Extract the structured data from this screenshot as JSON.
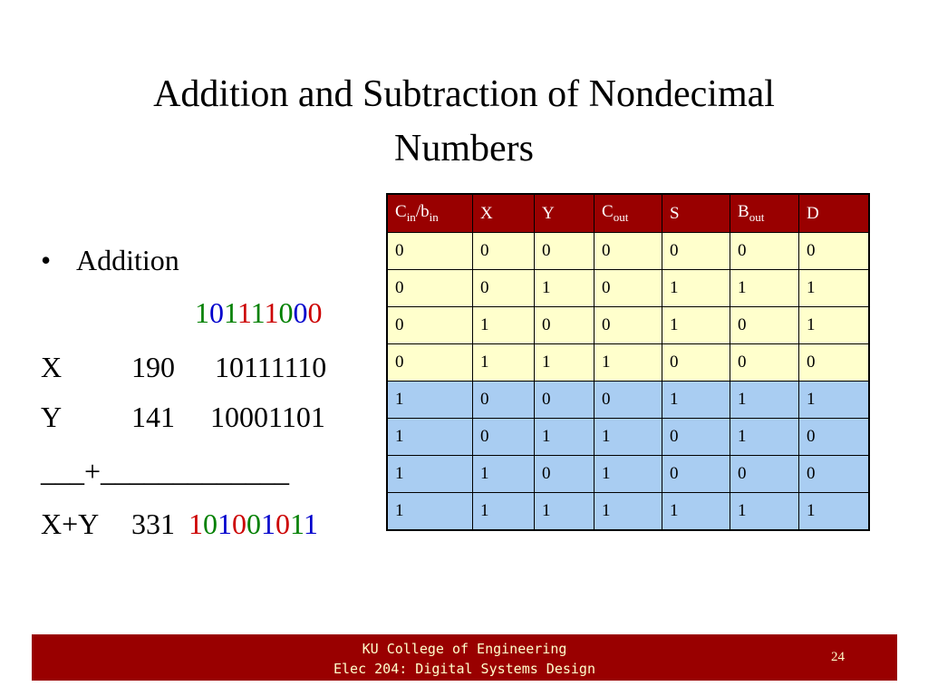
{
  "title": [
    "Addition and Subtraction of Nondecimal",
    "Numbers"
  ],
  "bullet": "Addition",
  "addition": {
    "carry": {
      "digits": [
        "1",
        "0",
        "1",
        "1",
        "1",
        "1",
        "0",
        "0",
        "0"
      ],
      "colors": [
        "#008000",
        "#0000cc",
        "#008000",
        "#cc0000",
        "#008000",
        "#cc0000",
        "#008000",
        "#0000cc",
        "#cc0000"
      ]
    },
    "x": {
      "label": "X",
      "decimal": "190",
      "binary": "10111110"
    },
    "y": {
      "label": "Y",
      "decimal": "141",
      "binary": "10001101"
    },
    "rule": "___+_____________",
    "sum": {
      "label": "X+Y",
      "decimal": "331",
      "digits": [
        "1",
        "0",
        "1",
        "0",
        "0",
        "1",
        "0",
        "1",
        "1"
      ],
      "colors": [
        "#cc0000",
        "#008000",
        "#0000cc",
        "#cc0000",
        "#008000",
        "#0000cc",
        "#cc0000",
        "#008000",
        "#0000cc"
      ]
    }
  },
  "table": {
    "header": [
      [
        {
          "text": "C",
          "sub": false
        },
        {
          "text": "in",
          "sub": true
        },
        {
          "text": "/b",
          "sub": false
        },
        {
          "text": "in",
          "sub": true
        }
      ],
      [
        {
          "text": "X",
          "sub": false
        }
      ],
      [
        {
          "text": "Y",
          "sub": false
        }
      ],
      [
        {
          "text": "C",
          "sub": false
        },
        {
          "text": "out",
          "sub": true
        }
      ],
      [
        {
          "text": "S",
          "sub": false
        }
      ],
      [
        {
          "text": "B",
          "sub": false
        },
        {
          "text": "out",
          "sub": true
        }
      ],
      [
        {
          "text": "D",
          "sub": false
        }
      ]
    ],
    "header_color": "#990000",
    "rows": [
      [
        "0",
        "0",
        "0",
        "0",
        "0",
        "0",
        "0"
      ],
      [
        "0",
        "0",
        "1",
        "0",
        "1",
        "1",
        "1"
      ],
      [
        "0",
        "1",
        "0",
        "0",
        "1",
        "0",
        "1"
      ],
      [
        "0",
        "1",
        "1",
        "1",
        "0",
        "0",
        "0"
      ],
      [
        "1",
        "0",
        "0",
        "0",
        "1",
        "1",
        "1"
      ],
      [
        "1",
        "0",
        "1",
        "1",
        "0",
        "1",
        "0"
      ],
      [
        "1",
        "1",
        "0",
        "1",
        "0",
        "0",
        "0"
      ],
      [
        "1",
        "1",
        "1",
        "1",
        "1",
        "1",
        "1"
      ]
    ],
    "row_colors": [
      "#ffffcc",
      "#ffffcc",
      "#ffffcc",
      "#ffffcc",
      "#a9cdf2",
      "#a9cdf2",
      "#a9cdf2",
      "#a9cdf2"
    ]
  },
  "footer": {
    "lines": [
      "KU College of Engineering",
      "Elec 204: Digital Systems Design"
    ],
    "page": "24"
  }
}
